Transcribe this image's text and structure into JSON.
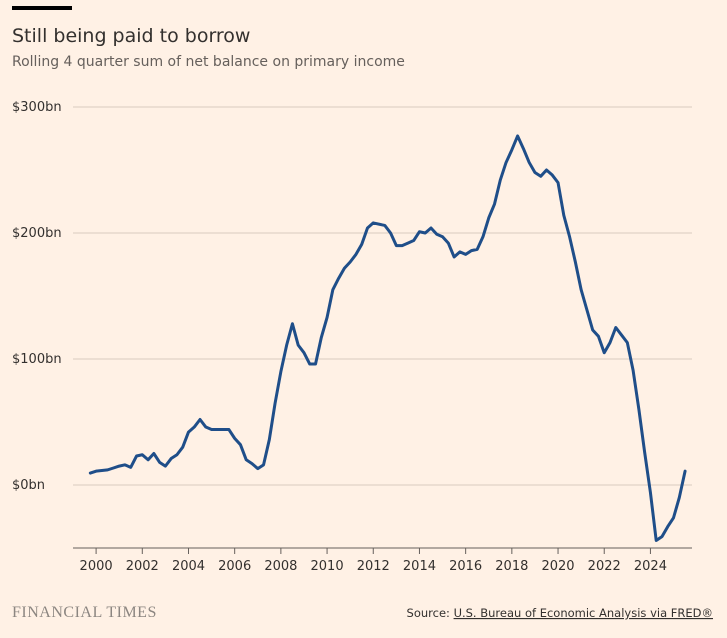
{
  "chart_data": {
    "type": "line",
    "title": "Still being paid to borrow",
    "subtitle": "Rolling 4 quarter sum of net balance on primary income",
    "brand": "FINANCIAL TIMES",
    "source_prefix": "Source:",
    "source": "U.S. Bureau of Economic Analysis via FRED®",
    "xlim": [
      1999,
      2025.8
    ],
    "xticks": [
      2000,
      2002,
      2004,
      2006,
      2008,
      2010,
      2012,
      2014,
      2016,
      2018,
      2020,
      2022,
      2024
    ],
    "ylim": [
      -50,
      300
    ],
    "yticks": [
      {
        "value": 0,
        "label": "$0bn"
      },
      {
        "value": 100,
        "label": "$100bn"
      },
      {
        "value": 200,
        "label": "$200bn"
      },
      {
        "value": 300,
        "label": "$300bn"
      }
    ],
    "grid": true,
    "x": [
      1999.75,
      2000,
      2000.5,
      2000.75,
      2001,
      2001.25,
      2001.5,
      2001.75,
      2002,
      2002.25,
      2002.5,
      2002.75,
      2003,
      2003.25,
      2003.5,
      2003.75,
      2004,
      2004.25,
      2004.5,
      2004.75,
      2005,
      2005.5,
      2005.75,
      2006,
      2006.25,
      2006.5,
      2006.75,
      2007,
      2007.25,
      2007.5,
      2007.75,
      2008,
      2008.25,
      2008.5,
      2008.75,
      2009,
      2009.25,
      2009.5,
      2009.75,
      2010,
      2010.25,
      2010.5,
      2010.75,
      2011,
      2011.25,
      2011.5,
      2011.75,
      2012,
      2012.5,
      2012.75,
      2013,
      2013.25,
      2013.5,
      2013.75,
      2014,
      2014.25,
      2014.5,
      2014.75,
      2015,
      2015.25,
      2015.5,
      2015.75,
      2016,
      2016.25,
      2016.5,
      2016.75,
      2017,
      2017.25,
      2017.5,
      2017.75,
      2018,
      2018.25,
      2018.5,
      2018.75,
      2019,
      2019.25,
      2019.5,
      2019.75,
      2020,
      2020.25,
      2020.5,
      2020.75,
      2021,
      2021.25,
      2021.5,
      2021.75,
      2022,
      2022.25,
      2022.5,
      2022.75,
      2023,
      2023.25,
      2023.5,
      2023.75,
      2024,
      2024.25,
      2024.5,
      2024.75,
      2025,
      2025.25,
      2025.5
    ],
    "series": [
      {
        "color": "#1f4e89",
        "values": [
          9.5,
          11,
          12,
          13.5,
          15,
          16,
          14,
          23,
          24,
          20,
          25,
          18,
          15,
          21,
          24,
          30,
          42,
          46,
          52,
          46,
          44,
          44,
          44,
          37,
          32,
          20,
          17,
          13,
          16,
          36,
          65,
          90,
          111,
          128,
          111,
          105,
          96,
          96,
          117,
          133,
          155,
          164,
          172,
          177,
          183,
          191,
          204,
          208,
          206,
          200,
          190,
          190,
          192,
          194,
          201,
          200,
          204,
          199,
          197,
          192,
          181,
          185,
          183,
          186,
          187,
          197,
          212,
          223,
          242,
          256,
          266,
          277,
          267,
          256,
          248,
          245,
          250,
          246,
          240,
          214,
          197,
          177,
          155,
          139,
          123,
          118,
          105,
          113,
          125,
          119,
          113,
          91,
          60,
          26,
          -6,
          -44,
          -41,
          -33,
          -26,
          -10,
          11
        ]
      }
    ]
  }
}
